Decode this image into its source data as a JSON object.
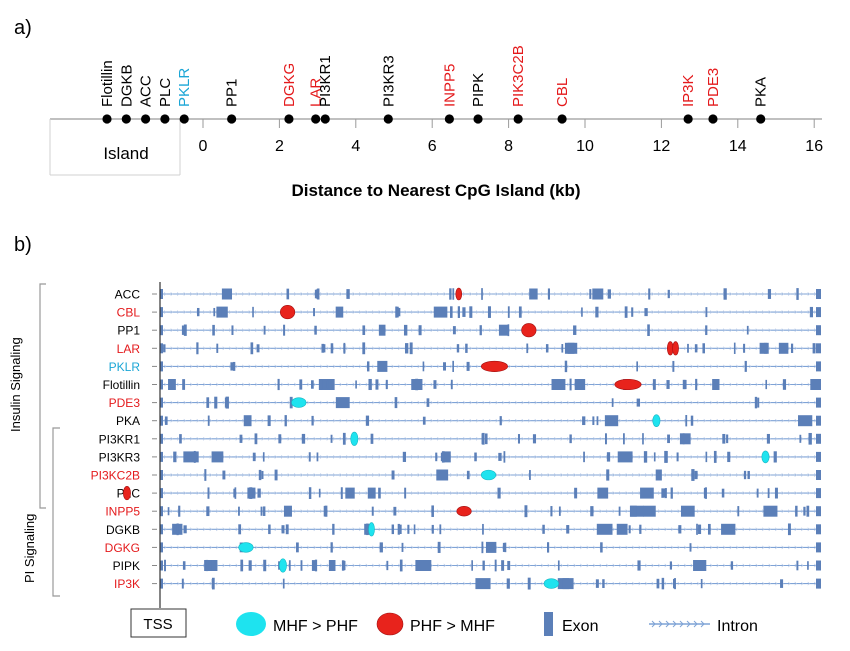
{
  "panel_a": {
    "label": "a)",
    "axis_title": "Distance to Nearest CpG Island (kb)",
    "island_label": "Island",
    "ticks": [
      "0",
      "2",
      "4",
      "6",
      "8",
      "10",
      "12",
      "14",
      "16"
    ],
    "genes": [
      {
        "name": "Flotillin",
        "kb": -2.5,
        "color": "#000000",
        "in_island": true
      },
      {
        "name": "DGKB",
        "kb": -2.0,
        "color": "#000000",
        "in_island": true
      },
      {
        "name": "ACC",
        "kb": -1.5,
        "color": "#000000",
        "in_island": true
      },
      {
        "name": "PLC",
        "kb": -1.0,
        "color": "#000000",
        "in_island": true
      },
      {
        "name": "PKLR",
        "kb": -0.5,
        "color": "#1ba6d6",
        "in_island": true
      },
      {
        "name": "PP1",
        "kb": 0.75,
        "color": "#000000"
      },
      {
        "name": "DGKG",
        "kb": 2.25,
        "color": "#e41a1c"
      },
      {
        "name": "LAR",
        "kb": 2.95,
        "color": "#e41a1c"
      },
      {
        "name": "PI3KR1",
        "kb": 3.2,
        "color": "#000000"
      },
      {
        "name": "PI3KR3",
        "kb": 4.85,
        "color": "#000000"
      },
      {
        "name": "INPP5",
        "kb": 6.45,
        "color": "#e41a1c"
      },
      {
        "name": "PIPK",
        "kb": 7.2,
        "color": "#000000"
      },
      {
        "name": "PIK3C2B",
        "kb": 8.25,
        "color": "#e41a1c"
      },
      {
        "name": "CBL",
        "kb": 9.4,
        "color": "#e41a1c"
      },
      {
        "name": "IP3K",
        "kb": 12.7,
        "color": "#e41a1c"
      },
      {
        "name": "PDE3",
        "kb": 13.35,
        "color": "#e41a1c"
      },
      {
        "name": "PKA",
        "kb": 14.6,
        "color": "#000000"
      }
    ]
  },
  "panel_b": {
    "label": "b)",
    "group_insulin": "Insulin Signaling",
    "group_pi": "PI Signaling",
    "tss_label": "TSS",
    "legend": {
      "mhf": "MHF > PHF",
      "phf": "PHF > MHF",
      "exon": "Exon",
      "intron": "Intron"
    },
    "colors": {
      "mhf": "#1ee3ef",
      "phf": "#e8231c",
      "exon": "#5b7fb8",
      "intron": "#7fa3d6",
      "black": "#000000",
      "red": "#e41a1c",
      "blue": "#1ba6d6"
    },
    "rows": [
      {
        "name": "ACC",
        "color": "#000000",
        "markers": [
          {
            "type": "phf",
            "pos": 0.452,
            "w": 0.006,
            "h": 0.8
          }
        ]
      },
      {
        "name": "CBL",
        "color": "#e41a1c",
        "markers": [
          {
            "type": "phf",
            "pos": 0.193,
            "w": 0.022,
            "h": 0.9
          }
        ]
      },
      {
        "name": "PP1",
        "color": "#000000",
        "markers": [
          {
            "type": "phf",
            "pos": 0.558,
            "w": 0.022,
            "h": 0.9
          }
        ]
      },
      {
        "name": "LAR",
        "color": "#e41a1c",
        "markers": [
          {
            "type": "phf",
            "pos": 0.772,
            "w": 0.009,
            "h": 0.9
          },
          {
            "type": "phf",
            "pos": 0.78,
            "w": 0.009,
            "h": 0.9
          }
        ]
      },
      {
        "name": "PKLR",
        "color": "#1ba6d6",
        "markers": [
          {
            "type": "phf",
            "pos": 0.506,
            "w": 0.04,
            "h": 0.7
          }
        ]
      },
      {
        "name": "Flotillin",
        "color": "#000000",
        "markers": [
          {
            "type": "phf",
            "pos": 0.708,
            "w": 0.04,
            "h": 0.7
          }
        ]
      },
      {
        "name": "PDE3",
        "color": "#e41a1c",
        "markers": [
          {
            "type": "mhf",
            "pos": 0.21,
            "w": 0.022,
            "h": 0.65
          }
        ]
      },
      {
        "name": "PKA",
        "color": "#000000",
        "markers": [
          {
            "type": "mhf",
            "pos": 0.751,
            "w": 0.011,
            "h": 0.8
          }
        ]
      },
      {
        "name": "PI3KR1",
        "color": "#000000",
        "markers": [
          {
            "type": "mhf",
            "pos": 0.294,
            "w": 0.011,
            "h": 0.9
          }
        ]
      },
      {
        "name": "PI3KR3",
        "color": "#000000",
        "markers": [
          {
            "type": "mhf",
            "pos": 0.916,
            "w": 0.011,
            "h": 0.8
          }
        ]
      },
      {
        "name": "PI3KC2B",
        "color": "#e41a1c",
        "markers": [
          {
            "type": "mhf",
            "pos": 0.497,
            "w": 0.022,
            "h": 0.65
          }
        ]
      },
      {
        "name": "PLC",
        "color": "#000000",
        "markers": [
          {
            "type": "phf",
            "pos": -0.05,
            "w": 0.011,
            "h": 0.9
          }
        ]
      },
      {
        "name": "INPP5",
        "color": "#e41a1c",
        "markers": [
          {
            "type": "phf",
            "pos": 0.46,
            "w": 0.022,
            "h": 0.65
          }
        ]
      },
      {
        "name": "DGKB",
        "color": "#000000",
        "markers": [
          {
            "type": "mhf",
            "pos": 0.32,
            "w": 0.007,
            "h": 0.9
          }
        ]
      },
      {
        "name": "DGKG",
        "color": "#e41a1c",
        "markers": [
          {
            "type": "mhf",
            "pos": 0.13,
            "w": 0.022,
            "h": 0.65
          }
        ]
      },
      {
        "name": "PIPK",
        "color": "#000000",
        "markers": [
          {
            "type": "mhf",
            "pos": 0.186,
            "w": 0.011,
            "h": 0.9
          }
        ]
      },
      {
        "name": "IP3K",
        "color": "#e41a1c",
        "markers": [
          {
            "type": "mhf",
            "pos": 0.592,
            "w": 0.022,
            "h": 0.65
          }
        ]
      }
    ]
  }
}
